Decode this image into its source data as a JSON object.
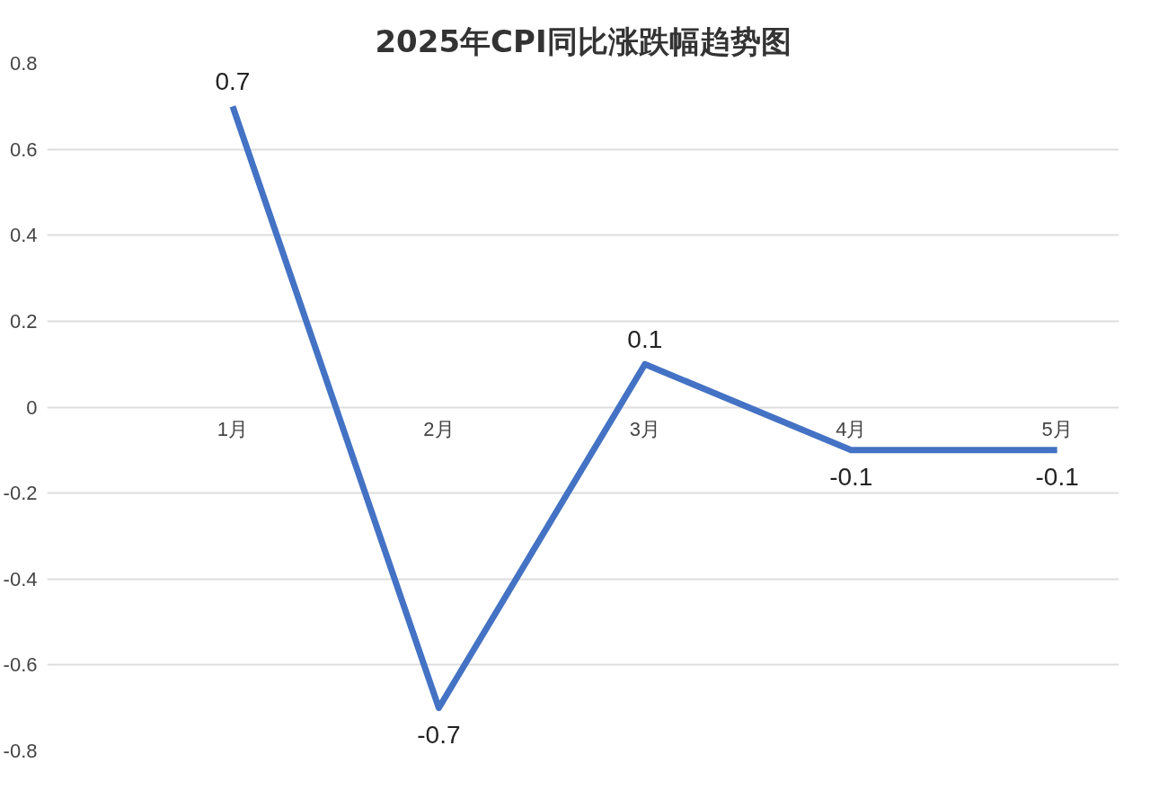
{
  "chart_data": {
    "type": "line",
    "title": "2025年CPI同比涨跌幅趋势图",
    "categories": [
      "1月",
      "2月",
      "3月",
      "4月",
      "5月"
    ],
    "series": [
      {
        "color": "#4472c4",
        "values": [
          0.7,
          -0.7,
          0.1,
          -0.1,
          -0.1
        ]
      }
    ],
    "ylim": [
      -0.8,
      0.8
    ],
    "yticks": [
      0.8,
      0.6,
      0.4,
      0.2,
      0,
      -0.2,
      -0.4,
      -0.6,
      -0.8
    ],
    "grid": "y",
    "data_labels": true,
    "marker": "none",
    "line_style": "solid"
  }
}
